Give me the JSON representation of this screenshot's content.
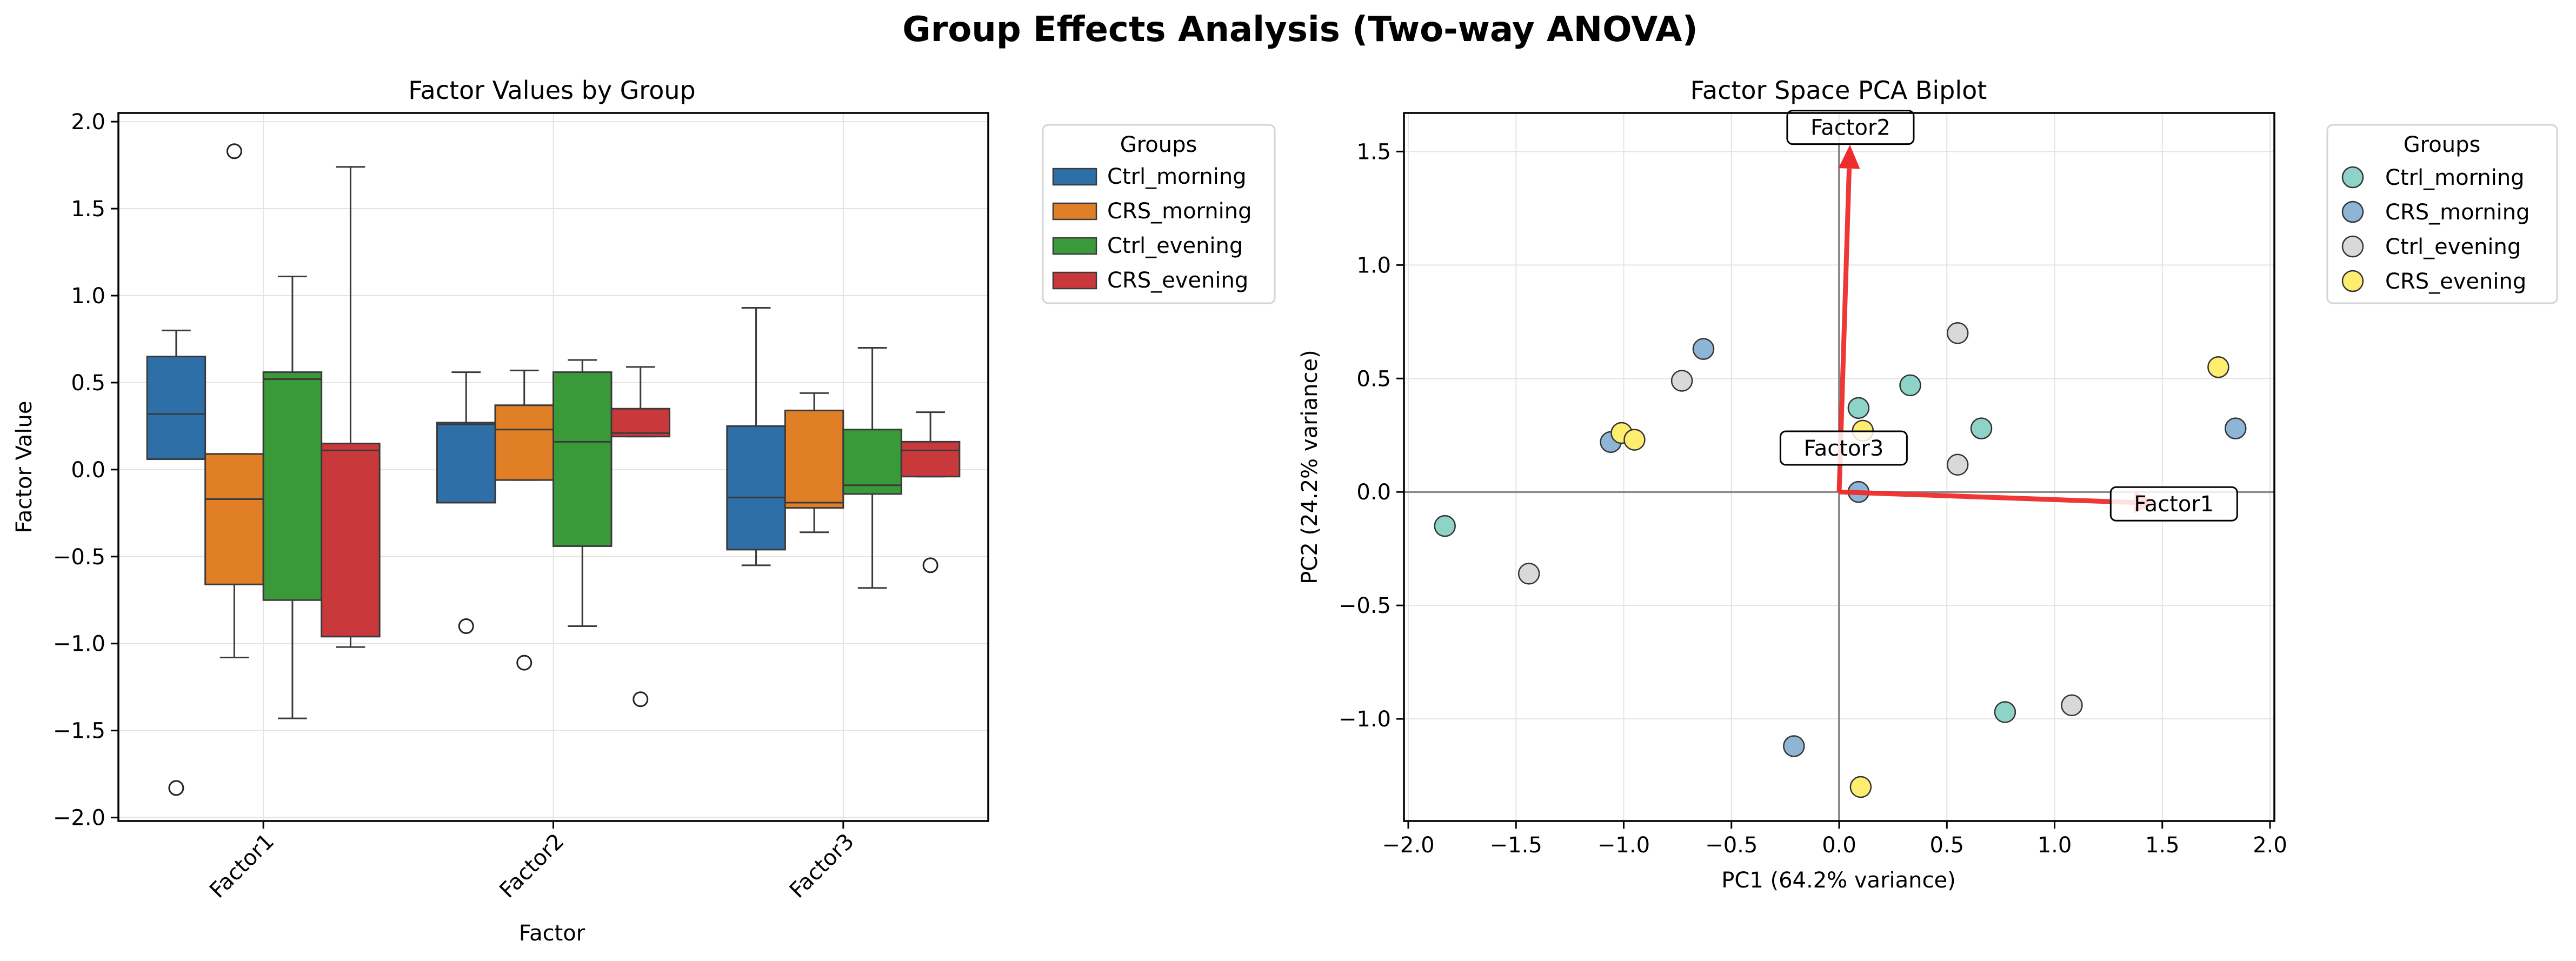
{
  "figure": {
    "suptitle": "Group Effects Analysis (Two-way ANOVA)"
  },
  "chart_data": [
    {
      "type": "box",
      "title": "Factor Values by Group",
      "xlabel": "Factor",
      "ylabel": "Factor Value",
      "categories": [
        "Factor1",
        "Factor2",
        "Factor3"
      ],
      "ylim": [
        -2.02,
        2.05
      ],
      "yticks": [
        -2.0,
        -1.5,
        -1.0,
        -0.5,
        0.0,
        0.5,
        1.0,
        1.5,
        2.0
      ],
      "ytick_labels": [
        "−2.0",
        "−1.5",
        "−1.0",
        "−0.5",
        "0.0",
        "0.5",
        "1.0",
        "1.5",
        "2.0"
      ],
      "grid": true,
      "legend": {
        "title": "Groups",
        "placement": "outside right"
      },
      "series": [
        {
          "name": "Ctrl_morning",
          "color": "#2e6fa7",
          "boxes": [
            {
              "whislo": 0.06,
              "q1": 0.06,
              "med": 0.32,
              "q3": 0.65,
              "whishi": 0.8,
              "fliers": [
                -1.83
              ]
            },
            {
              "whislo": -0.19,
              "q1": -0.19,
              "med": 0.26,
              "q3": 0.27,
              "whishi": 0.56,
              "fliers": [
                -0.9
              ]
            },
            {
              "whislo": -0.55,
              "q1": -0.46,
              "med": -0.16,
              "q3": 0.25,
              "whishi": 0.93,
              "fliers": []
            }
          ]
        },
        {
          "name": "CRS_morning",
          "color": "#e07f26",
          "boxes": [
            {
              "whislo": -1.08,
              "q1": -0.66,
              "med": -0.17,
              "q3": 0.09,
              "whishi": 0.09,
              "fliers": [
                1.83
              ]
            },
            {
              "whislo": -0.06,
              "q1": -0.06,
              "med": 0.23,
              "q3": 0.37,
              "whishi": 0.57,
              "fliers": [
                -1.11
              ]
            },
            {
              "whislo": -0.36,
              "q1": -0.22,
              "med": -0.19,
              "q3": 0.34,
              "whishi": 0.44,
              "fliers": []
            }
          ]
        },
        {
          "name": "Ctrl_evening",
          "color": "#3a9a3a",
          "boxes": [
            {
              "whislo": -1.43,
              "q1": -0.75,
              "med": 0.52,
              "q3": 0.56,
              "whishi": 1.11,
              "fliers": []
            },
            {
              "whislo": -0.9,
              "q1": -0.44,
              "med": 0.16,
              "q3": 0.56,
              "whishi": 0.63,
              "fliers": []
            },
            {
              "whislo": -0.68,
              "q1": -0.14,
              "med": -0.09,
              "q3": 0.23,
              "whishi": 0.7,
              "fliers": []
            }
          ]
        },
        {
          "name": "CRS_evening",
          "color": "#c9393b",
          "boxes": [
            {
              "whislo": -1.02,
              "q1": -0.96,
              "med": 0.11,
              "q3": 0.15,
              "whishi": 1.74,
              "fliers": []
            },
            {
              "whislo": 0.19,
              "q1": 0.19,
              "med": 0.21,
              "q3": 0.35,
              "whishi": 0.59,
              "fliers": [
                -1.32
              ]
            },
            {
              "whislo": -0.04,
              "q1": -0.04,
              "med": 0.11,
              "q3": 0.16,
              "whishi": 0.33,
              "fliers": [
                -0.55
              ]
            }
          ]
        }
      ]
    },
    {
      "type": "scatter",
      "title": "Factor Space PCA Biplot",
      "xlabel": "PC1 (64.2% variance)",
      "ylabel": "PC2 (24.2% variance)",
      "xlim": [
        -2.02,
        2.02
      ],
      "ylim": [
        -1.45,
        1.67
      ],
      "xticks": [
        -2.0,
        -1.5,
        -1.0,
        -0.5,
        0.0,
        0.5,
        1.0,
        1.5,
        2.0
      ],
      "xtick_labels": [
        "−2.0",
        "−1.5",
        "−1.0",
        "−0.5",
        "0.0",
        "0.5",
        "1.0",
        "1.5",
        "2.0"
      ],
      "yticks": [
        -1.0,
        -0.5,
        0.0,
        0.5,
        1.0,
        1.5
      ],
      "ytick_labels": [
        "−1.0",
        "−0.5",
        "0.0",
        "0.5",
        "1.0",
        "1.5"
      ],
      "grid": true,
      "legend": {
        "title": "Groups",
        "placement": "outside right"
      },
      "series": [
        {
          "name": "Ctrl_morning",
          "color": "#8dd3c7",
          "points": [
            [
              -1.83,
              -0.15
            ],
            [
              0.09,
              0.37
            ],
            [
              0.33,
              0.47
            ],
            [
              0.66,
              0.28
            ],
            [
              0.77,
              -0.97
            ]
          ]
        },
        {
          "name": "CRS_morning",
          "color": "#8eb5d6",
          "points": [
            [
              -1.06,
              0.22
            ],
            [
              -0.63,
              0.63
            ],
            [
              0.09,
              0.0
            ],
            [
              1.84,
              0.28
            ],
            [
              -0.21,
              -1.12
            ]
          ]
        },
        {
          "name": "Ctrl_evening",
          "color": "#d9d9d9",
          "points": [
            [
              -1.44,
              -0.36
            ],
            [
              -0.73,
              0.49
            ],
            [
              0.55,
              0.7
            ],
            [
              0.55,
              0.12
            ],
            [
              1.08,
              -0.94
            ]
          ]
        },
        {
          "name": "CRS_evening",
          "color": "#ffed6f",
          "points": [
            [
              -1.01,
              0.26
            ],
            [
              -0.95,
              0.23
            ],
            [
              0.11,
              0.27
            ],
            [
              1.76,
              0.55
            ],
            [
              0.1,
              -1.3
            ]
          ]
        }
      ],
      "loadings": [
        {
          "name": "Factor1",
          "x": 1.48,
          "y": -0.05
        },
        {
          "name": "Factor2",
          "x": 0.05,
          "y": 1.53
        },
        {
          "name": "Factor3",
          "x": 0.02,
          "y": 0.07
        }
      ],
      "arrow_color": "#ee2c2c"
    }
  ]
}
